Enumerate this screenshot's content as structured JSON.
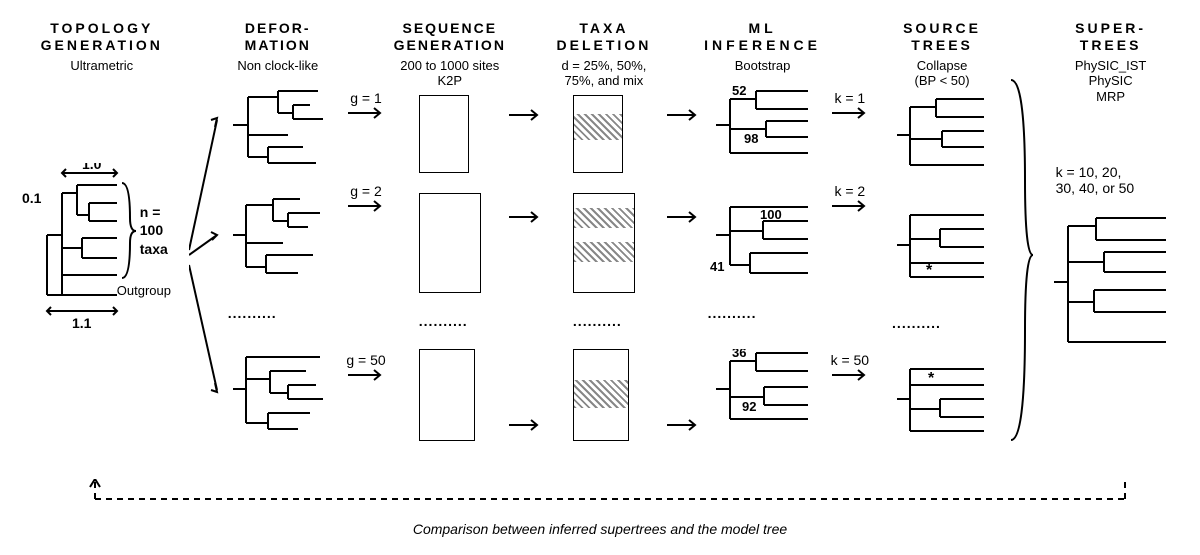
{
  "columns": {
    "topology": {
      "header": "TOPOLOGY GENERATION",
      "sub": "Ultrametric"
    },
    "deformation": {
      "header": "DEFOR- MATION",
      "sub": "Non clock-like"
    },
    "sequence": {
      "header": "SEQUENCE GENERATION",
      "sub": "200 to 1000 sites K2P"
    },
    "taxa": {
      "header": "TAXA DELETION",
      "sub": "d = 25%, 50%, 75%, and mix"
    },
    "ml": {
      "header": "ML INFERENCE",
      "sub": "Bootstrap"
    },
    "source": {
      "header": "SOURCE TREES",
      "sub": "Collapse (BP < 50)"
    },
    "super": {
      "header": "SUPER- TREES",
      "sub": "PhySIC_IST PhySIC MRP"
    }
  },
  "model_tree": {
    "width_label": "1.0",
    "root_label": "0.1",
    "total_label": "1.1",
    "taxa_label_n": "n =",
    "taxa_label_100": "100",
    "taxa_label_taxa": "taxa",
    "outgroup": "Outgroup"
  },
  "g_labels": {
    "g1": "g = 1",
    "g2": "g = 2",
    "g50": "g = 50"
  },
  "k_labels": {
    "k1": "k = 1",
    "k2": "k = 2",
    "k50": "k = 50"
  },
  "bp": {
    "r1a": "52",
    "r1b": "98",
    "r2a": "100",
    "r2b": "41",
    "r3a": "36",
    "r3b": "92"
  },
  "star": "*",
  "k_text": "k = 10, 20, 30, 40, or 50",
  "footer": "Comparison between inferred supertrees and the model tree",
  "colors": {
    "line": "#000000",
    "bg": "#ffffff",
    "hatch": "#888888"
  },
  "seq_box": {
    "w_small": 50,
    "h_small": 82,
    "w_large": 60,
    "h_large": 100
  },
  "font": {
    "header_pt": 14,
    "sub_pt": 13,
    "label_pt": 14
  }
}
